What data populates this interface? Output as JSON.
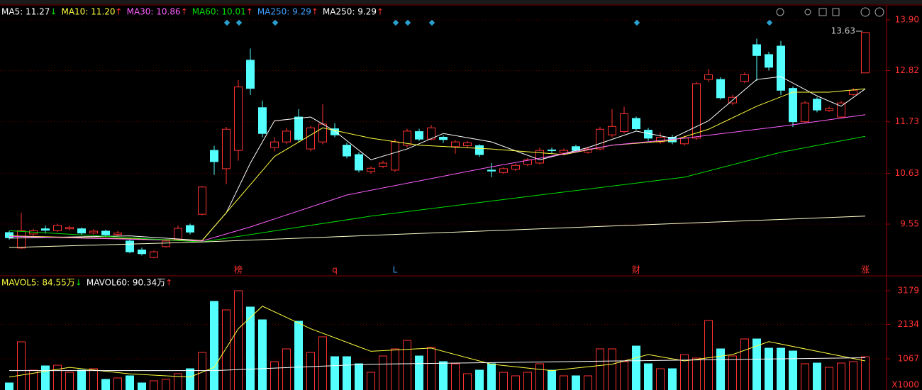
{
  "header": {
    "ma_items": [
      {
        "label": "MA5: 11.27",
        "arrow": "↓",
        "color": "#ffffff",
        "arrow_color": "#00e000"
      },
      {
        "label": "MA10: 11.20",
        "arrow": "↑",
        "color": "#ffff40",
        "arrow_color": "#ff3232"
      },
      {
        "label": "MA30: 10.86",
        "arrow": "↑",
        "color": "#ff60ff",
        "arrow_color": "#ff3232"
      },
      {
        "label": "MA60: 10.01",
        "arrow": "↑",
        "color": "#00e000",
        "arrow_color": "#ff3232"
      },
      {
        "label": "MA250: 9.29",
        "arrow": "↑",
        "color": "#40a0ff",
        "arrow_color": "#ff3232"
      },
      {
        "label": "MA250: 9.29",
        "arrow": "↑",
        "color": "#ffffff",
        "arrow_color": "#ff3232"
      }
    ],
    "vol_items": [
      {
        "label": "MAVOL5: 84.55万",
        "arrow": "↓",
        "color": "#ffff40",
        "arrow_color": "#00e000"
      },
      {
        "label": "MAVOL60: 90.34万",
        "arrow": "↑",
        "color": "#ffffff",
        "arrow_color": "#ff3232"
      }
    ]
  },
  "last_price_label": "13.63",
  "events": [
    "榜",
    "q",
    "L",
    "财",
    "涨"
  ],
  "chart_data": [
    {
      "type": "candlestick",
      "up_color": "#ff3232",
      "down_color": "#54ffff",
      "ylim": [
        8.66,
        14.02
      ],
      "yticks": [
        {
          "value": 13.9,
          "label": "13.90"
        },
        12.82,
        11.73,
        10.63,
        9.55
      ],
      "open": [
        9.37,
        9.04,
        9.34,
        9.45,
        9.41,
        9.45,
        9.45,
        9.36,
        9.4,
        9.33,
        9.19,
        9.0,
        8.84,
        9.07,
        9.22,
        9.52,
        9.76,
        11.12,
        10.73,
        11.12,
        13.04,
        12.03,
        11.18,
        11.3,
        11.83,
        11.15,
        11.3,
        11.58,
        11.23,
        11.03,
        10.67,
        10.78,
        10.7,
        11.23,
        11.52,
        11.36,
        11.4,
        11.2,
        11.22,
        11.22,
        10.7,
        10.65,
        10.72,
        10.82,
        10.85,
        11.13,
        11.06,
        11.2,
        11.08,
        11.15,
        11.45,
        11.52,
        11.8,
        11.55,
        11.3,
        11.4,
        11.26,
        11.38,
        12.63,
        12.63,
        12.13,
        12.59,
        13.37,
        13.16,
        13.34,
        12.44,
        11.73,
        12.21,
        11.97,
        11.83,
        12.31,
        12.77
      ],
      "close": [
        9.26,
        9.41,
        9.41,
        9.42,
        9.52,
        9.48,
        9.36,
        9.4,
        9.32,
        9.36,
        8.96,
        8.92,
        8.96,
        9.19,
        9.46,
        9.38,
        10.34,
        10.88,
        11.57,
        12.47,
        12.44,
        11.48,
        11.3,
        11.53,
        11.35,
        11.6,
        11.68,
        11.45,
        11.0,
        10.7,
        10.74,
        10.85,
        11.3,
        11.53,
        11.36,
        11.6,
        11.35,
        11.3,
        11.28,
        11.03,
        10.68,
        10.73,
        10.8,
        10.92,
        11.12,
        11.12,
        11.12,
        11.12,
        11.15,
        11.57,
        11.63,
        11.9,
        11.58,
        11.38,
        11.4,
        11.3,
        11.38,
        12.54,
        12.73,
        12.24,
        12.25,
        12.73,
        13.14,
        12.89,
        12.4,
        11.73,
        12.13,
        11.98,
        12.01,
        12.13,
        12.4,
        13.63
      ],
      "high": [
        9.4,
        9.79,
        9.45,
        9.52,
        9.56,
        9.52,
        9.48,
        9.44,
        9.43,
        9.4,
        9.22,
        9.05,
        8.99,
        9.22,
        9.52,
        9.56,
        10.36,
        11.22,
        11.62,
        12.62,
        13.29,
        12.18,
        11.4,
        11.6,
        12.0,
        11.65,
        12.1,
        11.7,
        11.28,
        11.08,
        10.78,
        10.9,
        11.36,
        11.58,
        11.58,
        11.66,
        11.44,
        11.34,
        11.32,
        11.25,
        10.85,
        10.76,
        10.84,
        10.96,
        11.18,
        11.18,
        11.16,
        11.24,
        11.2,
        11.62,
        12.0,
        12.05,
        11.84,
        11.6,
        11.5,
        11.45,
        11.44,
        12.58,
        12.85,
        12.68,
        12.3,
        12.78,
        13.5,
        13.22,
        13.45,
        12.48,
        12.17,
        12.25,
        12.05,
        12.17,
        12.45,
        13.63
      ],
      "low": [
        9.22,
        9.02,
        9.3,
        9.35,
        9.38,
        9.42,
        9.32,
        9.33,
        9.28,
        9.3,
        8.93,
        8.88,
        8.82,
        9.05,
        9.2,
        9.33,
        9.74,
        10.6,
        10.4,
        10.9,
        12.3,
        11.4,
        11.1,
        11.25,
        11.3,
        11.1,
        11.25,
        11.4,
        10.95,
        10.65,
        10.62,
        10.74,
        10.66,
        11.18,
        11.32,
        11.33,
        11.28,
        11.05,
        11.18,
        10.98,
        10.55,
        10.62,
        10.68,
        10.78,
        10.82,
        11.06,
        11.02,
        11.08,
        11.05,
        11.12,
        11.4,
        11.48,
        11.55,
        11.32,
        11.26,
        11.25,
        11.22,
        11.34,
        12.58,
        12.2,
        12.08,
        12.55,
        12.6,
        12.82,
        12.3,
        11.62,
        11.7,
        11.93,
        11.94,
        11.8,
        12.28,
        12.77
      ],
      "lines": [
        {
          "color": "#ffffff",
          "x": [
            0,
            10,
            16,
            18,
            20,
            22,
            25,
            27,
            30,
            33,
            36,
            40,
            44,
            48,
            52,
            55,
            58,
            62,
            64,
            67,
            69,
            71
          ],
          "values": [
            9.25,
            9.3,
            9.2,
            9.79,
            10.85,
            11.75,
            11.83,
            11.53,
            10.92,
            11.15,
            11.48,
            11.3,
            10.92,
            11.18,
            11.53,
            11.38,
            11.75,
            12.63,
            12.69,
            12.28,
            12.06,
            12.43
          ]
        },
        {
          "color": "#ffff40",
          "x": [
            0,
            16,
            19,
            22,
            26,
            30,
            34,
            40,
            46,
            50,
            55,
            58,
            62,
            65,
            68,
            71
          ],
          "values": [
            9.3,
            9.2,
            10.09,
            10.99,
            11.6,
            11.38,
            11.23,
            11.15,
            11.03,
            11.23,
            11.33,
            11.57,
            12.06,
            12.36,
            12.36,
            12.43
          ]
        },
        {
          "color": "#ff60ff",
          "x": [
            0,
            16,
            20,
            28,
            40,
            50,
            56,
            64,
            71
          ],
          "values": [
            9.29,
            9.19,
            9.49,
            10.17,
            10.77,
            11.23,
            11.38,
            11.63,
            11.88
          ]
        },
        {
          "color": "#00e000",
          "x": [
            0,
            16,
            30,
            44,
            56,
            64,
            71
          ],
          "values": [
            9.41,
            9.17,
            9.72,
            10.17,
            10.55,
            11.08,
            11.42
          ]
        },
        {
          "color": "#ffffcc",
          "x": [
            0,
            16,
            71
          ],
          "values": [
            9.05,
            9.17,
            9.72
          ]
        }
      ]
    },
    {
      "type": "bar",
      "ylim": [
        99,
        3575
      ],
      "yticks": [
        3179,
        2134,
        1067
      ],
      "unit": "X1000",
      "values": [
        319,
        1595,
        715,
        847,
        869,
        649,
        715,
        759,
        429,
        473,
        539,
        319,
        385,
        429,
        605,
        759,
        1265,
        2849,
        2585,
        3179,
        2673,
        2277,
        979,
        1375,
        2233,
        1265,
        1749,
        1133,
        1133,
        913,
        649,
        1155,
        1375,
        1639,
        1155,
        1419,
        979,
        913,
        605,
        715,
        913,
        649,
        539,
        649,
        913,
        715,
        539,
        539,
        539,
        1375,
        1375,
        979,
        1463,
        913,
        759,
        759,
        1199,
        1089,
        2255,
        1375,
        1155,
        1683,
        1683,
        1397,
        1397,
        1309,
        913,
        935,
        803,
        935,
        979,
        1133
      ],
      "lines": [
        {
          "color": "#ffff40",
          "x": [
            0,
            5,
            10,
            15,
            17,
            19,
            21,
            25,
            30,
            35,
            40,
            45,
            50,
            53,
            56,
            60,
            63,
            67,
            71
          ],
          "values": [
            500,
            800,
            600,
            500,
            800,
            2000,
            2700,
            2000,
            1300,
            1400,
            900,
            700,
            900,
            1200,
            1000,
            1200,
            1600,
            1300,
            1000
          ]
        },
        {
          "color": "#ffffff",
          "x": [
            0,
            17,
            30,
            71
          ],
          "values": [
            700,
            700,
            900,
            1100
          ]
        }
      ]
    }
  ]
}
